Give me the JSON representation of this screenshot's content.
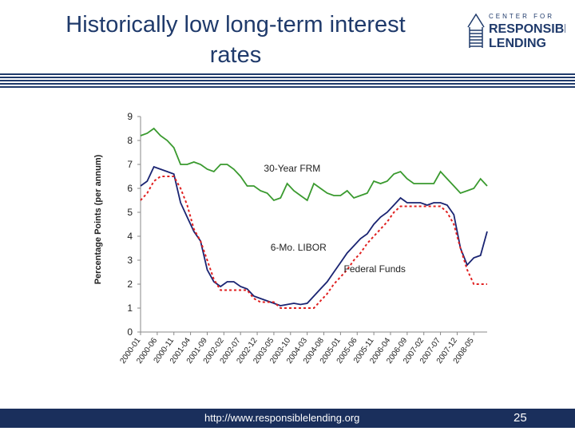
{
  "slide": {
    "title": "Historically low long-term interest rates",
    "logo_text": "CENTER FOR RESPONSIBLE LENDING",
    "footer_url": "http://www.responsiblelending.org",
    "page_number": "25"
  },
  "colors": {
    "navy": "#1f3a6b",
    "frm": "#3a9a2f",
    "libor": "#1a2472",
    "ff": "#e02020"
  },
  "chart_data": {
    "type": "line",
    "title": "",
    "xlabel": "",
    "ylabel": "Percentage Points (per annum)",
    "ylim": [
      0,
      9
    ],
    "yticks": [
      0,
      1,
      2,
      3,
      4,
      5,
      6,
      7,
      8,
      9
    ],
    "grid": false,
    "x_start": "2000-01",
    "x_end": "2008-09",
    "x_tick_labels": [
      "2000-01",
      "2000-06",
      "2000-11",
      "2001-04",
      "2001-09",
      "2002-02",
      "2002-07",
      "2002-12",
      "2003-05",
      "2003-10",
      "2004-03",
      "2004-08",
      "2005-01",
      "2005-06",
      "2005-11",
      "2006-04",
      "2006-09",
      "2007-02",
      "2007-07",
      "2007-12",
      "2008-05"
    ],
    "annotations": [
      "30-Year FRM",
      "6-Mo. LIBOR",
      "Federal Funds"
    ],
    "series": [
      {
        "name": "30-Year FRM",
        "style": "solid",
        "color": "#3a9a2f",
        "x": [
          "2000-01",
          "2000-03",
          "2000-05",
          "2000-07",
          "2000-09",
          "2000-11",
          "2001-01",
          "2001-03",
          "2001-05",
          "2001-07",
          "2001-09",
          "2001-11",
          "2002-01",
          "2002-03",
          "2002-05",
          "2002-07",
          "2002-09",
          "2002-11",
          "2003-01",
          "2003-03",
          "2003-05",
          "2003-07",
          "2003-09",
          "2003-11",
          "2004-01",
          "2004-03",
          "2004-05",
          "2004-07",
          "2004-09",
          "2004-11",
          "2005-01",
          "2005-03",
          "2005-05",
          "2005-07",
          "2005-09",
          "2005-11",
          "2006-01",
          "2006-03",
          "2006-05",
          "2006-07",
          "2006-09",
          "2006-11",
          "2007-01",
          "2007-03",
          "2007-05",
          "2007-07",
          "2007-09",
          "2007-11",
          "2008-01",
          "2008-03",
          "2008-05",
          "2008-07",
          "2008-09"
        ],
        "y": [
          8.2,
          8.3,
          8.5,
          8.2,
          8.0,
          7.7,
          7.0,
          7.0,
          7.1,
          7.0,
          6.8,
          6.7,
          7.0,
          7.0,
          6.8,
          6.5,
          6.1,
          6.1,
          5.9,
          5.8,
          5.5,
          5.6,
          6.2,
          5.9,
          5.7,
          5.5,
          6.2,
          6.0,
          5.8,
          5.7,
          5.7,
          5.9,
          5.6,
          5.7,
          5.8,
          6.3,
          6.2,
          6.3,
          6.6,
          6.7,
          6.4,
          6.2,
          6.2,
          6.2,
          6.2,
          6.7,
          6.4,
          6.1,
          5.8,
          5.9,
          6.0,
          6.4,
          6.1
        ]
      },
      {
        "name": "6-Mo. LIBOR",
        "style": "solid",
        "color": "#1a2472",
        "x": [
          "2000-01",
          "2000-03",
          "2000-05",
          "2000-07",
          "2000-09",
          "2000-11",
          "2001-01",
          "2001-03",
          "2001-05",
          "2001-07",
          "2001-09",
          "2001-11",
          "2002-01",
          "2002-03",
          "2002-05",
          "2002-07",
          "2002-09",
          "2002-11",
          "2003-01",
          "2003-03",
          "2003-05",
          "2003-07",
          "2003-09",
          "2003-11",
          "2004-01",
          "2004-03",
          "2004-05",
          "2004-07",
          "2004-09",
          "2004-11",
          "2005-01",
          "2005-03",
          "2005-05",
          "2005-07",
          "2005-09",
          "2005-11",
          "2006-01",
          "2006-03",
          "2006-05",
          "2006-07",
          "2006-09",
          "2006-11",
          "2007-01",
          "2007-03",
          "2007-05",
          "2007-07",
          "2007-09",
          "2007-11",
          "2008-01",
          "2008-03",
          "2008-05",
          "2008-07",
          "2008-09"
        ],
        "y": [
          6.1,
          6.3,
          6.9,
          6.8,
          6.7,
          6.6,
          5.4,
          4.8,
          4.2,
          3.8,
          2.6,
          2.1,
          1.9,
          2.1,
          2.1,
          1.9,
          1.8,
          1.5,
          1.4,
          1.3,
          1.2,
          1.1,
          1.15,
          1.2,
          1.15,
          1.2,
          1.5,
          1.8,
          2.1,
          2.5,
          2.9,
          3.3,
          3.6,
          3.9,
          4.1,
          4.5,
          4.8,
          5.0,
          5.3,
          5.6,
          5.4,
          5.4,
          5.4,
          5.3,
          5.4,
          5.4,
          5.3,
          4.9,
          3.5,
          2.8,
          3.1,
          3.2,
          4.2
        ]
      },
      {
        "name": "Federal Funds",
        "style": "dashed",
        "color": "#e02020",
        "x": [
          "2000-01",
          "2000-03",
          "2000-05",
          "2000-07",
          "2000-09",
          "2000-11",
          "2001-01",
          "2001-03",
          "2001-05",
          "2001-07",
          "2001-09",
          "2001-11",
          "2002-01",
          "2002-03",
          "2002-05",
          "2002-07",
          "2002-09",
          "2002-11",
          "2003-01",
          "2003-03",
          "2003-05",
          "2003-07",
          "2003-09",
          "2003-11",
          "2004-01",
          "2004-03",
          "2004-05",
          "2004-07",
          "2004-09",
          "2004-11",
          "2005-01",
          "2005-03",
          "2005-05",
          "2005-07",
          "2005-09",
          "2005-11",
          "2006-01",
          "2006-03",
          "2006-05",
          "2006-07",
          "2006-09",
          "2006-11",
          "2007-01",
          "2007-03",
          "2007-05",
          "2007-07",
          "2007-09",
          "2007-11",
          "2008-01",
          "2008-03",
          "2008-05",
          "2008-07",
          "2008-09"
        ],
        "y": [
          5.5,
          5.8,
          6.3,
          6.5,
          6.5,
          6.5,
          6.0,
          5.3,
          4.3,
          3.8,
          3.0,
          2.2,
          1.75,
          1.75,
          1.75,
          1.75,
          1.75,
          1.4,
          1.25,
          1.25,
          1.25,
          1.0,
          1.0,
          1.0,
          1.0,
          1.0,
          1.0,
          1.3,
          1.6,
          2.0,
          2.3,
          2.6,
          3.0,
          3.3,
          3.7,
          4.0,
          4.3,
          4.6,
          5.0,
          5.25,
          5.25,
          5.25,
          5.25,
          5.25,
          5.25,
          5.25,
          5.0,
          4.5,
          3.5,
          2.6,
          2.0,
          2.0,
          2.0
        ]
      }
    ]
  }
}
